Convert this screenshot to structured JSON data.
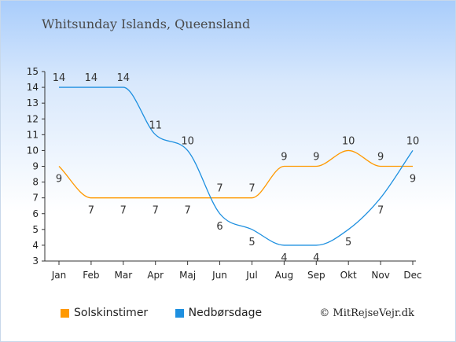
{
  "chart_data": {
    "type": "line",
    "title": "Whitsunday Islands, Queensland",
    "categories": [
      "Jan",
      "Feb",
      "Mar",
      "Apr",
      "Maj",
      "Jun",
      "Jul",
      "Aug",
      "Sep",
      "Okt",
      "Nov",
      "Dec"
    ],
    "ylim": [
      3,
      15
    ],
    "yticks": [
      "3",
      "4",
      "5",
      "6",
      "7",
      "8",
      "9",
      "10",
      "11",
      "12",
      "13",
      "14",
      "15"
    ],
    "grid": false,
    "legend_position": "bottom-left",
    "series": [
      {
        "name": "Solskinstimer",
        "color": "#ff9900",
        "values": [
          9,
          7,
          7,
          7,
          7,
          7,
          7,
          9,
          9,
          10,
          9,
          9
        ]
      },
      {
        "name": "Nedbørsdage",
        "color": "#1e90e0",
        "values": [
          14,
          14,
          14,
          11,
          10,
          6,
          5,
          4,
          4,
          5,
          7,
          10
        ]
      }
    ]
  },
  "credit": "© MitRejseVejr.dk"
}
